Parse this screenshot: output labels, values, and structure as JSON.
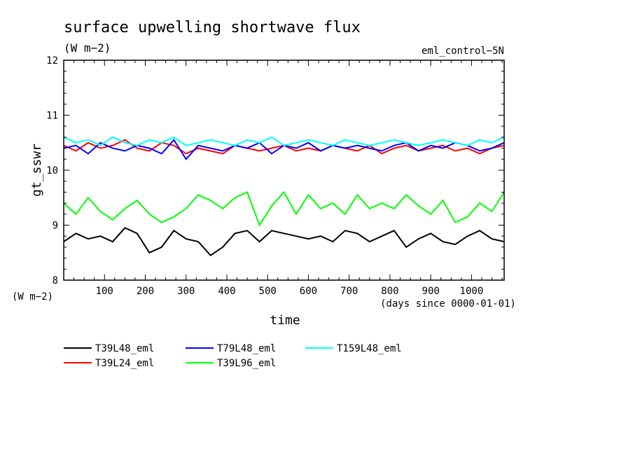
{
  "chart_data": {
    "type": "line",
    "title": "surface upwelling shortwave flux",
    "subtitle": "(W m−2)",
    "experiment": "eml_control−5N",
    "ylabel": "gt_sswr",
    "yunit": "(W m−2)",
    "xlabel": "time",
    "xunit": "(days since 0000-01-01)",
    "xlim": [
      0,
      1080
    ],
    "ylim": [
      8,
      12
    ],
    "xticks": [
      100,
      200,
      300,
      400,
      500,
      600,
      700,
      800,
      900,
      1000
    ],
    "yticks": [
      8,
      9,
      10,
      11,
      12
    ],
    "xtick_labels": [
      "100",
      "200",
      "300",
      "400",
      "500",
      "600",
      "700",
      "800",
      "900",
      "1000"
    ],
    "ytick_labels": [
      "8",
      "9",
      "10",
      "11",
      "12"
    ],
    "grid": false,
    "legend_position": "bottom-left",
    "series": [
      {
        "name": "T39L48_eml",
        "color": "#000000",
        "x": [
          0,
          30,
          60,
          90,
          120,
          150,
          180,
          210,
          240,
          270,
          300,
          330,
          360,
          390,
          420,
          450,
          480,
          510,
          540,
          570,
          600,
          630,
          660,
          690,
          720,
          750,
          780,
          810,
          840,
          870,
          900,
          930,
          960,
          990,
          1020,
          1050,
          1080
        ],
        "values": [
          8.7,
          8.85,
          8.75,
          8.8,
          8.7,
          8.95,
          8.85,
          8.5,
          8.6,
          8.9,
          8.75,
          8.7,
          8.45,
          8.6,
          8.85,
          8.9,
          8.7,
          8.9,
          8.85,
          8.8,
          8.75,
          8.8,
          8.7,
          8.9,
          8.85,
          8.7,
          8.8,
          8.9,
          8.6,
          8.75,
          8.85,
          8.7,
          8.65,
          8.8,
          8.9,
          8.75,
          8.7
        ]
      },
      {
        "name": "T39L24_eml",
        "color": "#ff0000",
        "x": [
          0,
          30,
          60,
          90,
          120,
          150,
          180,
          210,
          240,
          270,
          300,
          330,
          360,
          390,
          420,
          450,
          480,
          510,
          540,
          570,
          600,
          630,
          660,
          690,
          720,
          750,
          780,
          810,
          840,
          870,
          900,
          930,
          960,
          990,
          1020,
          1050,
          1080
        ],
        "values": [
          10.45,
          10.35,
          10.5,
          10.4,
          10.45,
          10.55,
          10.4,
          10.35,
          10.5,
          10.45,
          10.3,
          10.4,
          10.35,
          10.3,
          10.45,
          10.4,
          10.35,
          10.4,
          10.45,
          10.35,
          10.4,
          10.35,
          10.45,
          10.4,
          10.35,
          10.45,
          10.3,
          10.4,
          10.45,
          10.35,
          10.4,
          10.45,
          10.35,
          10.4,
          10.3,
          10.4,
          10.45
        ]
      },
      {
        "name": "T79L48_eml",
        "color": "#0000ff",
        "x": [
          0,
          30,
          60,
          90,
          120,
          150,
          180,
          210,
          240,
          270,
          300,
          330,
          360,
          390,
          420,
          450,
          480,
          510,
          540,
          570,
          600,
          630,
          660,
          690,
          720,
          750,
          780,
          810,
          840,
          870,
          900,
          930,
          960,
          990,
          1020,
          1050,
          1080
        ],
        "values": [
          10.4,
          10.45,
          10.3,
          10.5,
          10.4,
          10.35,
          10.45,
          10.4,
          10.3,
          10.55,
          10.2,
          10.45,
          10.4,
          10.35,
          10.45,
          10.4,
          10.5,
          10.3,
          10.45,
          10.4,
          10.5,
          10.35,
          10.45,
          10.4,
          10.45,
          10.4,
          10.35,
          10.45,
          10.5,
          10.35,
          10.45,
          10.4,
          10.5,
          10.45,
          10.35,
          10.4,
          10.5
        ]
      },
      {
        "name": "T39L96_eml",
        "color": "#00ff00",
        "x": [
          0,
          30,
          60,
          90,
          120,
          150,
          180,
          210,
          240,
          270,
          300,
          330,
          360,
          390,
          420,
          450,
          480,
          510,
          540,
          570,
          600,
          630,
          660,
          690,
          720,
          750,
          780,
          810,
          840,
          870,
          900,
          930,
          960,
          990,
          1020,
          1050,
          1080
        ],
        "values": [
          9.4,
          9.2,
          9.5,
          9.25,
          9.1,
          9.3,
          9.45,
          9.2,
          9.05,
          9.15,
          9.3,
          9.55,
          9.45,
          9.3,
          9.5,
          9.6,
          9.0,
          9.35,
          9.6,
          9.2,
          9.55,
          9.3,
          9.4,
          9.2,
          9.55,
          9.3,
          9.4,
          9.3,
          9.55,
          9.35,
          9.2,
          9.45,
          9.05,
          9.15,
          9.4,
          9.25,
          9.6
        ]
      },
      {
        "name": "T159L48_eml",
        "color": "#00ffff",
        "x": [
          0,
          30,
          60,
          90,
          120,
          150,
          180,
          210,
          240,
          270,
          300,
          330,
          360,
          390,
          420,
          450,
          480,
          510,
          540,
          570,
          600,
          630,
          660,
          690,
          720,
          750,
          780,
          810,
          840,
          870,
          900,
          930,
          960,
          990,
          1020,
          1050,
          1080
        ],
        "values": [
          10.6,
          10.5,
          10.55,
          10.45,
          10.6,
          10.5,
          10.45,
          10.55,
          10.5,
          10.6,
          10.45,
          10.5,
          10.55,
          10.5,
          10.45,
          10.55,
          10.5,
          10.6,
          10.45,
          10.5,
          10.55,
          10.5,
          10.45,
          10.55,
          10.5,
          10.45,
          10.5,
          10.55,
          10.5,
          10.45,
          10.5,
          10.55,
          10.5,
          10.45,
          10.55,
          10.5,
          10.6
        ]
      }
    ]
  }
}
